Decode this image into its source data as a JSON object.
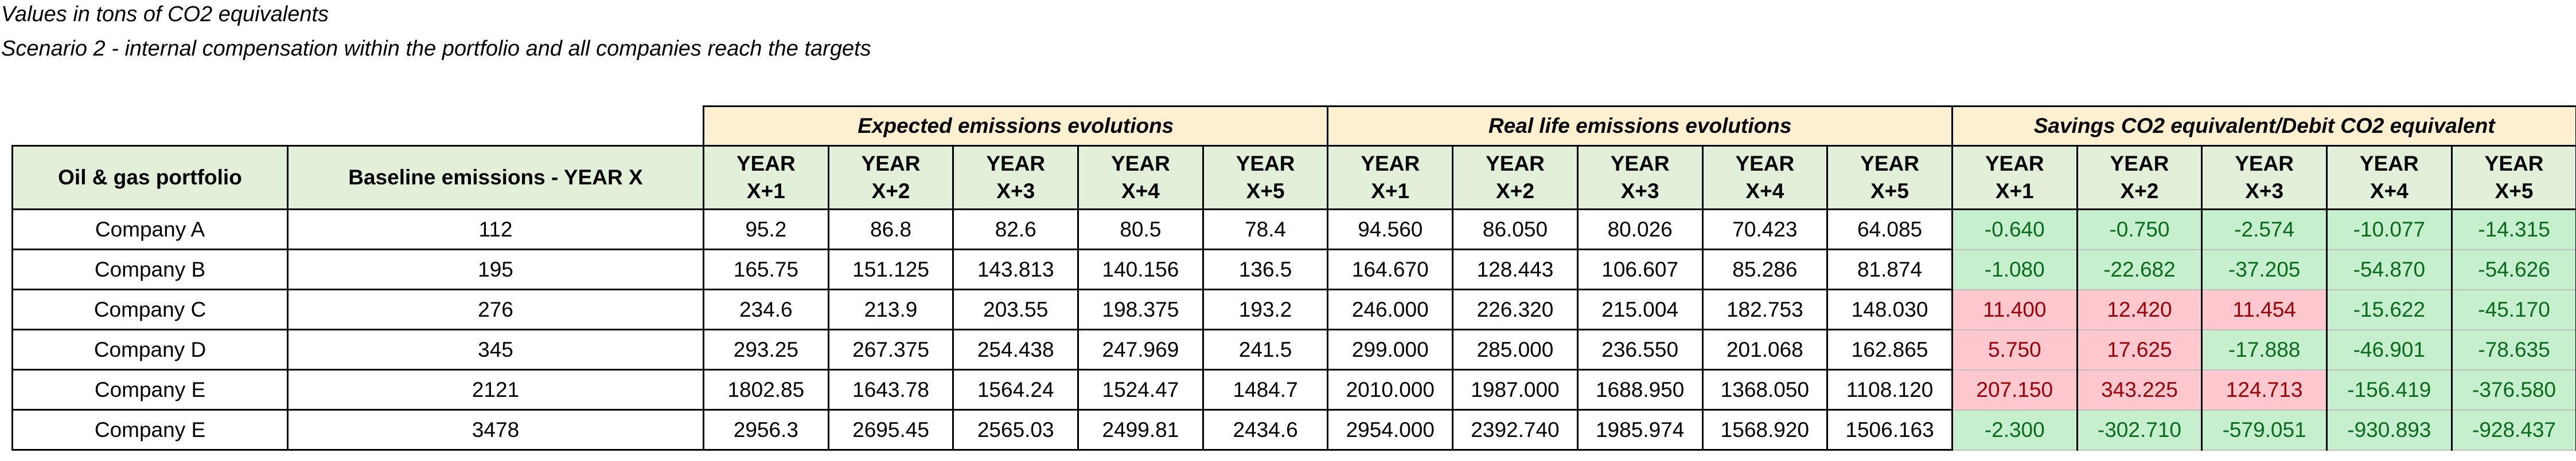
{
  "notes": {
    "line1": "Values in tons of CO2 equivalents",
    "line2": "Scenario 2  - internal compensation within the portfolio and all companies reach the targets"
  },
  "groups": {
    "expected": "Expected emissions evolutions",
    "real": "Real life emissions evolutions",
    "savings": "Savings CO2 equivalent/Debit CO2 equivalent"
  },
  "headers": {
    "portfolio": "Oil & gas portfolio",
    "baseline": "Baseline emissions - YEAR X",
    "years": [
      "YEAR X+1",
      "YEAR X+2",
      "YEAR X+3",
      "YEAR X+4",
      "YEAR X+5"
    ]
  },
  "colors": {
    "saving_fill": "#c6efce",
    "saving_text": "#0a6a1b",
    "debit_fill": "#ffc7ce",
    "debit_text": "#9c0006",
    "header_fill": "#e2efd9",
    "group_fill": "#fdf0d0"
  },
  "rows": [
    {
      "company": "Company A",
      "baseline": "112",
      "expected": [
        "95.2",
        "86.8",
        "82.6",
        "80.5",
        "78.4"
      ],
      "real": [
        "94.560",
        "86.050",
        "80.026",
        "70.423",
        "64.085"
      ],
      "savings": [
        "-0.640",
        "-0.750",
        "-2.574",
        "-10.077",
        "-14.315"
      ]
    },
    {
      "company": "Company B",
      "baseline": "195",
      "expected": [
        "165.75",
        "151.125",
        "143.813",
        "140.156",
        "136.5"
      ],
      "real": [
        "164.670",
        "128.443",
        "106.607",
        "85.286",
        "81.874"
      ],
      "savings": [
        "-1.080",
        "-22.682",
        "-37.205",
        "-54.870",
        "-54.626"
      ]
    },
    {
      "company": "Company C",
      "baseline": "276",
      "expected": [
        "234.6",
        "213.9",
        "203.55",
        "198.375",
        "193.2"
      ],
      "real": [
        "246.000",
        "226.320",
        "215.004",
        "182.753",
        "148.030"
      ],
      "savings": [
        "11.400",
        "12.420",
        "11.454",
        "-15.622",
        "-45.170"
      ]
    },
    {
      "company": "Company D",
      "baseline": "345",
      "expected": [
        "293.25",
        "267.375",
        "254.438",
        "247.969",
        "241.5"
      ],
      "real": [
        "299.000",
        "285.000",
        "236.550",
        "201.068",
        "162.865"
      ],
      "savings": [
        "5.750",
        "17.625",
        "-17.888",
        "-46.901",
        "-78.635"
      ]
    },
    {
      "company": "Company E",
      "baseline": "2121",
      "expected": [
        "1802.85",
        "1643.78",
        "1564.24",
        "1524.47",
        "1484.7"
      ],
      "real": [
        "2010.000",
        "1987.000",
        "1688.950",
        "1368.050",
        "1108.120"
      ],
      "savings": [
        "207.150",
        "343.225",
        "124.713",
        "-156.419",
        "-376.580"
      ]
    },
    {
      "company": "Company E",
      "baseline": "3478",
      "expected": [
        "2956.3",
        "2695.45",
        "2565.03",
        "2499.81",
        "2434.6"
      ],
      "real": [
        "2954.000",
        "2392.740",
        "1985.974",
        "1568.920",
        "1506.163"
      ],
      "savings": [
        "-2.300",
        "-302.710",
        "-579.051",
        "-930.893",
        "-928.437"
      ]
    }
  ]
}
